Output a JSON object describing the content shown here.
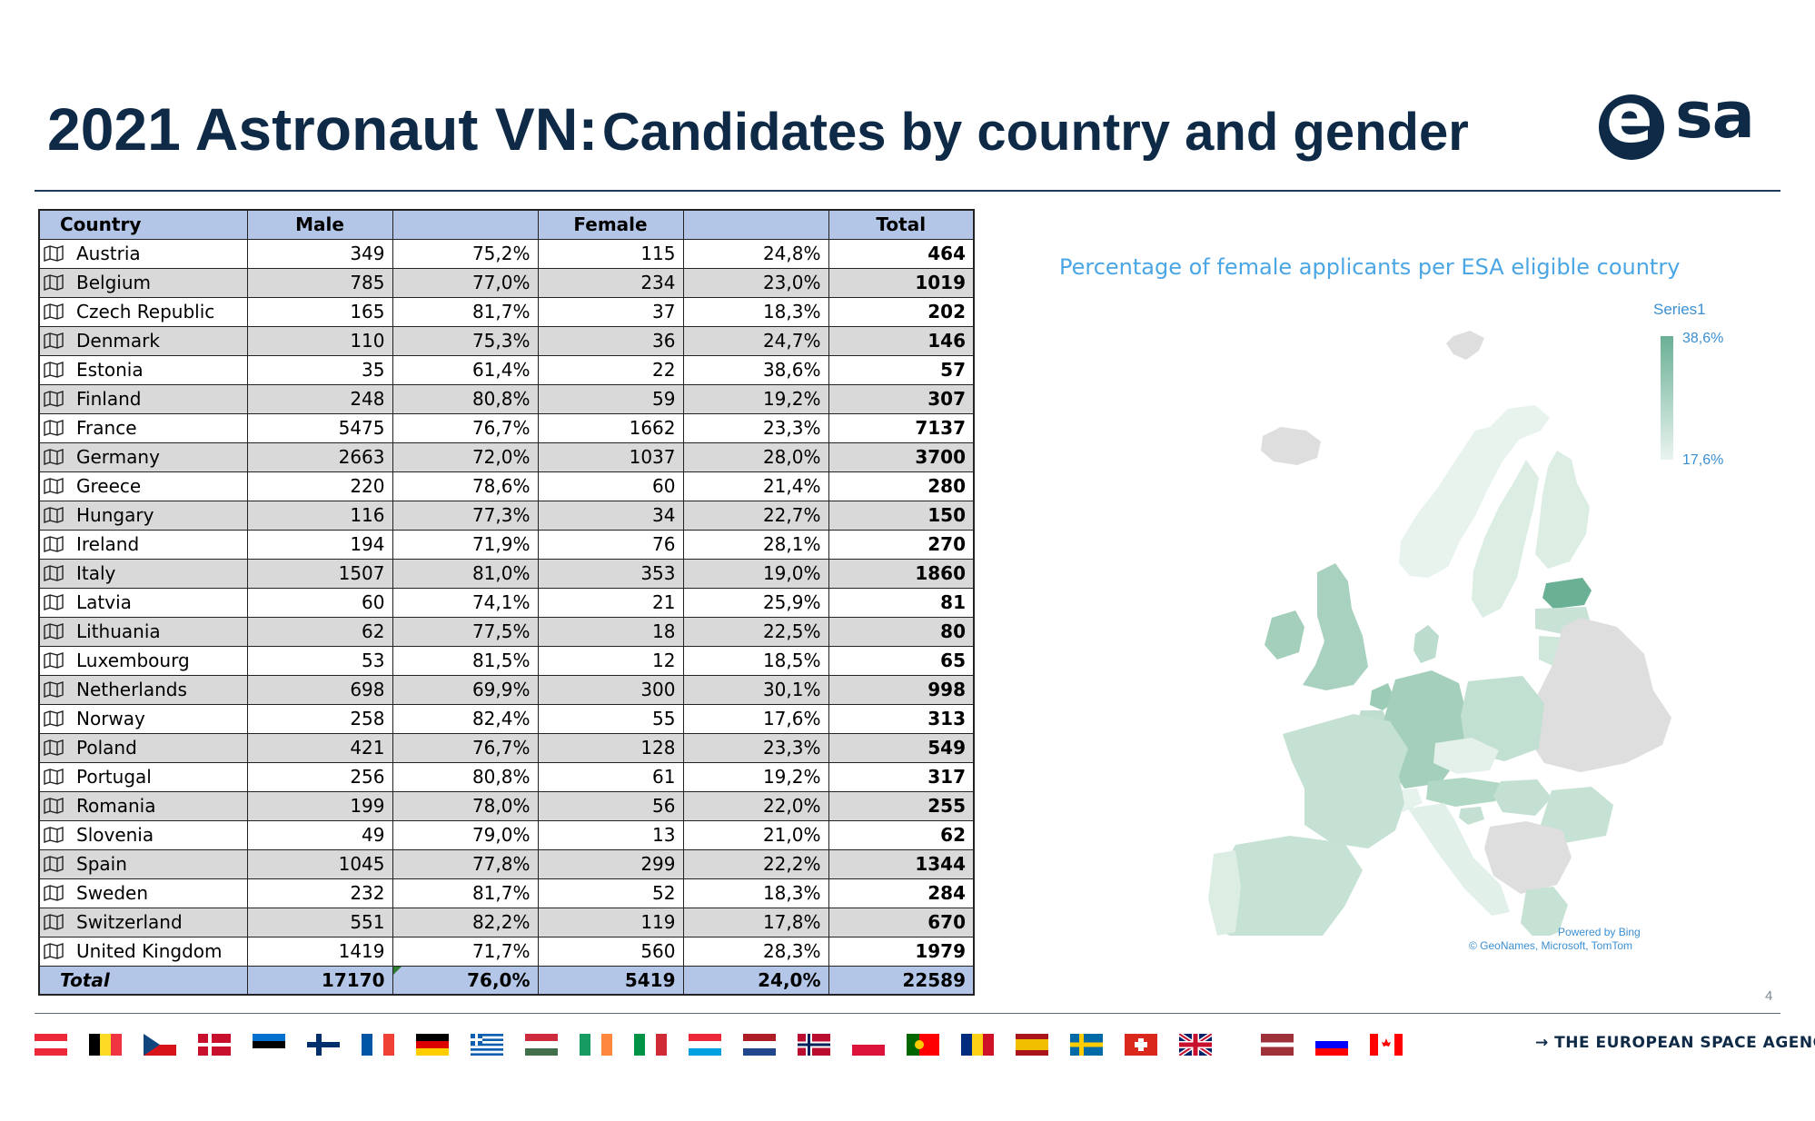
{
  "slide": {
    "title_part1": "2021 Astronaut VN:",
    "title_part2": "Candidates by country and gender",
    "page_number": "4",
    "footer_agency": "→ THE EUROPEAN SPACE AGENCY",
    "logo_text": "esa"
  },
  "table": {
    "headers": {
      "country": "Country",
      "male": "Male",
      "male_pct": "",
      "female": "Female",
      "female_pct": "",
      "total": "Total"
    },
    "rows": [
      {
        "country": "Austria",
        "male": "349",
        "male_pct": "75,2%",
        "female": "115",
        "female_pct": "24,8%",
        "total": "464"
      },
      {
        "country": "Belgium",
        "male": "785",
        "male_pct": "77,0%",
        "female": "234",
        "female_pct": "23,0%",
        "total": "1019"
      },
      {
        "country": "Czech Republic",
        "male": "165",
        "male_pct": "81,7%",
        "female": "37",
        "female_pct": "18,3%",
        "total": "202"
      },
      {
        "country": "Denmark",
        "male": "110",
        "male_pct": "75,3%",
        "female": "36",
        "female_pct": "24,7%",
        "total": "146"
      },
      {
        "country": "Estonia",
        "male": "35",
        "male_pct": "61,4%",
        "female": "22",
        "female_pct": "38,6%",
        "total": "57"
      },
      {
        "country": "Finland",
        "male": "248",
        "male_pct": "80,8%",
        "female": "59",
        "female_pct": "19,2%",
        "total": "307"
      },
      {
        "country": "France",
        "male": "5475",
        "male_pct": "76,7%",
        "female": "1662",
        "female_pct": "23,3%",
        "total": "7137"
      },
      {
        "country": "Germany",
        "male": "2663",
        "male_pct": "72,0%",
        "female": "1037",
        "female_pct": "28,0%",
        "total": "3700"
      },
      {
        "country": "Greece",
        "male": "220",
        "male_pct": "78,6%",
        "female": "60",
        "female_pct": "21,4%",
        "total": "280"
      },
      {
        "country": "Hungary",
        "male": "116",
        "male_pct": "77,3%",
        "female": "34",
        "female_pct": "22,7%",
        "total": "150"
      },
      {
        "country": "Ireland",
        "male": "194",
        "male_pct": "71,9%",
        "female": "76",
        "female_pct": "28,1%",
        "total": "270"
      },
      {
        "country": "Italy",
        "male": "1507",
        "male_pct": "81,0%",
        "female": "353",
        "female_pct": "19,0%",
        "total": "1860"
      },
      {
        "country": "Latvia",
        "male": "60",
        "male_pct": "74,1%",
        "female": "21",
        "female_pct": "25,9%",
        "total": "81"
      },
      {
        "country": "Lithuania",
        "male": "62",
        "male_pct": "77,5%",
        "female": "18",
        "female_pct": "22,5%",
        "total": "80"
      },
      {
        "country": "Luxembourg",
        "male": "53",
        "male_pct": "81,5%",
        "female": "12",
        "female_pct": "18,5%",
        "total": "65"
      },
      {
        "country": "Netherlands",
        "male": "698",
        "male_pct": "69,9%",
        "female": "300",
        "female_pct": "30,1%",
        "total": "998"
      },
      {
        "country": "Norway",
        "male": "258",
        "male_pct": "82,4%",
        "female": "55",
        "female_pct": "17,6%",
        "total": "313"
      },
      {
        "country": "Poland",
        "male": "421",
        "male_pct": "76,7%",
        "female": "128",
        "female_pct": "23,3%",
        "total": "549"
      },
      {
        "country": "Portugal",
        "male": "256",
        "male_pct": "80,8%",
        "female": "61",
        "female_pct": "19,2%",
        "total": "317"
      },
      {
        "country": "Romania",
        "male": "199",
        "male_pct": "78,0%",
        "female": "56",
        "female_pct": "22,0%",
        "total": "255"
      },
      {
        "country": "Slovenia",
        "male": "49",
        "male_pct": "79,0%",
        "female": "13",
        "female_pct": "21,0%",
        "total": "62"
      },
      {
        "country": "Spain",
        "male": "1045",
        "male_pct": "77,8%",
        "female": "299",
        "female_pct": "22,2%",
        "total": "1344"
      },
      {
        "country": "Sweden",
        "male": "232",
        "male_pct": "81,7%",
        "female": "52",
        "female_pct": "18,3%",
        "total": "284"
      },
      {
        "country": "Switzerland",
        "male": "551",
        "male_pct": "82,2%",
        "female": "119",
        "female_pct": "17,8%",
        "total": "670"
      },
      {
        "country": "United Kingdom",
        "male": "1419",
        "male_pct": "71,7%",
        "female": "560",
        "female_pct": "28,3%",
        "total": "1979"
      }
    ],
    "totals": {
      "country": "Total",
      "male": "17170",
      "male_pct": "76,0%",
      "female": "5419",
      "female_pct": "24,0%",
      "total": "22589"
    }
  },
  "map": {
    "title": "Percentage of female applicants per ESA eligible country",
    "legend_series": "Series1",
    "legend_max": "38,6%",
    "legend_min": "17,6%",
    "credit_line1": "Powered by Bing",
    "credit_line2": "© GeoNames, Microsoft, TomTom",
    "colors": {
      "max": "#6ab095",
      "min": "#e9f4ef",
      "non_member": "#dedede"
    }
  },
  "flags": [
    {
      "name": "austria-flag-icon"
    },
    {
      "name": "belgium-flag-icon"
    },
    {
      "name": "czech-flag-icon"
    },
    {
      "name": "denmark-flag-icon"
    },
    {
      "name": "estonia-flag-icon"
    },
    {
      "name": "finland-flag-icon"
    },
    {
      "name": "france-flag-icon"
    },
    {
      "name": "germany-flag-icon"
    },
    {
      "name": "greece-flag-icon"
    },
    {
      "name": "hungary-flag-icon"
    },
    {
      "name": "ireland-flag-icon"
    },
    {
      "name": "italy-flag-icon"
    },
    {
      "name": "luxembourg-flag-icon"
    },
    {
      "name": "netherlands-flag-icon"
    },
    {
      "name": "norway-flag-icon"
    },
    {
      "name": "poland-flag-icon"
    },
    {
      "name": "portugal-flag-icon"
    },
    {
      "name": "romania-flag-icon"
    },
    {
      "name": "spain-flag-icon"
    },
    {
      "name": "sweden-flag-icon"
    },
    {
      "name": "switzerland-flag-icon"
    },
    {
      "name": "uk-flag-icon"
    },
    {
      "name": "latvia-flag-icon"
    },
    {
      "name": "slovenia-flag-icon"
    },
    {
      "name": "canada-flag-icon"
    }
  ]
}
